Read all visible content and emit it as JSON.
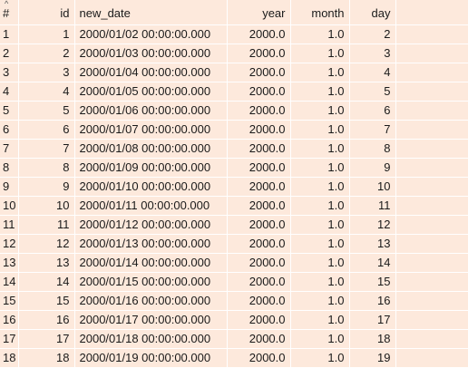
{
  "table": {
    "columns": {
      "index": "#",
      "id": "id",
      "new_date": "new_date",
      "year": "year",
      "month": "month",
      "day": "day"
    },
    "sort_indicator": "^",
    "rows": [
      {
        "index": "1",
        "id": "1",
        "new_date": "2000/01/02 00:00:00.000",
        "year": "2000.0",
        "month": "1.0",
        "day": "2"
      },
      {
        "index": "2",
        "id": "2",
        "new_date": "2000/01/03 00:00:00.000",
        "year": "2000.0",
        "month": "1.0",
        "day": "3"
      },
      {
        "index": "3",
        "id": "3",
        "new_date": "2000/01/04 00:00:00.000",
        "year": "2000.0",
        "month": "1.0",
        "day": "4"
      },
      {
        "index": "4",
        "id": "4",
        "new_date": "2000/01/05 00:00:00.000",
        "year": "2000.0",
        "month": "1.0",
        "day": "5"
      },
      {
        "index": "5",
        "id": "5",
        "new_date": "2000/01/06 00:00:00.000",
        "year": "2000.0",
        "month": "1.0",
        "day": "6"
      },
      {
        "index": "6",
        "id": "6",
        "new_date": "2000/01/07 00:00:00.000",
        "year": "2000.0",
        "month": "1.0",
        "day": "7"
      },
      {
        "index": "7",
        "id": "7",
        "new_date": "2000/01/08 00:00:00.000",
        "year": "2000.0",
        "month": "1.0",
        "day": "8"
      },
      {
        "index": "8",
        "id": "8",
        "new_date": "2000/01/09 00:00:00.000",
        "year": "2000.0",
        "month": "1.0",
        "day": "9"
      },
      {
        "index": "9",
        "id": "9",
        "new_date": "2000/01/10 00:00:00.000",
        "year": "2000.0",
        "month": "1.0",
        "day": "10"
      },
      {
        "index": "10",
        "id": "10",
        "new_date": "2000/01/11 00:00:00.000",
        "year": "2000.0",
        "month": "1.0",
        "day": "11"
      },
      {
        "index": "11",
        "id": "11",
        "new_date": "2000/01/12 00:00:00.000",
        "year": "2000.0",
        "month": "1.0",
        "day": "12"
      },
      {
        "index": "12",
        "id": "12",
        "new_date": "2000/01/13 00:00:00.000",
        "year": "2000.0",
        "month": "1.0",
        "day": "13"
      },
      {
        "index": "13",
        "id": "13",
        "new_date": "2000/01/14 00:00:00.000",
        "year": "2000.0",
        "month": "1.0",
        "day": "14"
      },
      {
        "index": "14",
        "id": "14",
        "new_date": "2000/01/15 00:00:00.000",
        "year": "2000.0",
        "month": "1.0",
        "day": "15"
      },
      {
        "index": "15",
        "id": "15",
        "new_date": "2000/01/16 00:00:00.000",
        "year": "2000.0",
        "month": "1.0",
        "day": "16"
      },
      {
        "index": "16",
        "id": "16",
        "new_date": "2000/01/17 00:00:00.000",
        "year": "2000.0",
        "month": "1.0",
        "day": "17"
      },
      {
        "index": "17",
        "id": "17",
        "new_date": "2000/01/18 00:00:00.000",
        "year": "2000.0",
        "month": "1.0",
        "day": "18"
      },
      {
        "index": "18",
        "id": "18",
        "new_date": "2000/01/19 00:00:00.000",
        "year": "2000.0",
        "month": "1.0",
        "day": "19"
      }
    ]
  },
  "colors": {
    "background": "#fde9dc",
    "grid_lines": "#ffffff",
    "text": "#1a1a1a"
  }
}
